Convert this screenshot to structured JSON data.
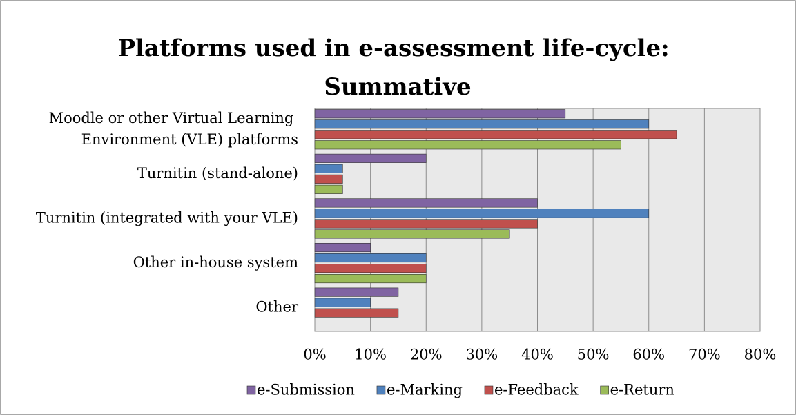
{
  "chart_data": {
    "type": "bar",
    "orientation": "horizontal",
    "title": "Platforms used in e-assessment life-cycle: Summative",
    "categories": [
      "Moodle or other Virtual Learning Environment (VLE) platforms",
      "Turnitin (stand-alone)",
      "Turnitin (integrated with your VLE)",
      "Other in-house system",
      "Other"
    ],
    "series": [
      {
        "name": "e-Submission",
        "color": "#8064a2",
        "values": [
          45,
          20,
          40,
          10,
          15
        ]
      },
      {
        "name": "e-Marking",
        "color": "#4f81bd",
        "values": [
          60,
          5,
          60,
          20,
          10
        ]
      },
      {
        "name": "e-Feedback",
        "color": "#c0504d",
        "values": [
          65,
          5,
          40,
          20,
          15
        ]
      },
      {
        "name": "e-Return",
        "color": "#9bbb59",
        "values": [
          55,
          5,
          35,
          20,
          null
        ]
      }
    ],
    "xlim": [
      0,
      80
    ],
    "xticks": [
      {
        "value": 0,
        "label": "0%"
      },
      {
        "value": 10,
        "label": "10%"
      },
      {
        "value": 20,
        "label": "20%"
      },
      {
        "value": 30,
        "label": "30%"
      },
      {
        "value": 40,
        "label": "40%"
      },
      {
        "value": 50,
        "label": "50%"
      },
      {
        "value": 60,
        "label": "60%"
      },
      {
        "value": 70,
        "label": "70%"
      },
      {
        "value": 80,
        "label": "80%"
      }
    ],
    "grid": true,
    "legend": "bottom"
  }
}
